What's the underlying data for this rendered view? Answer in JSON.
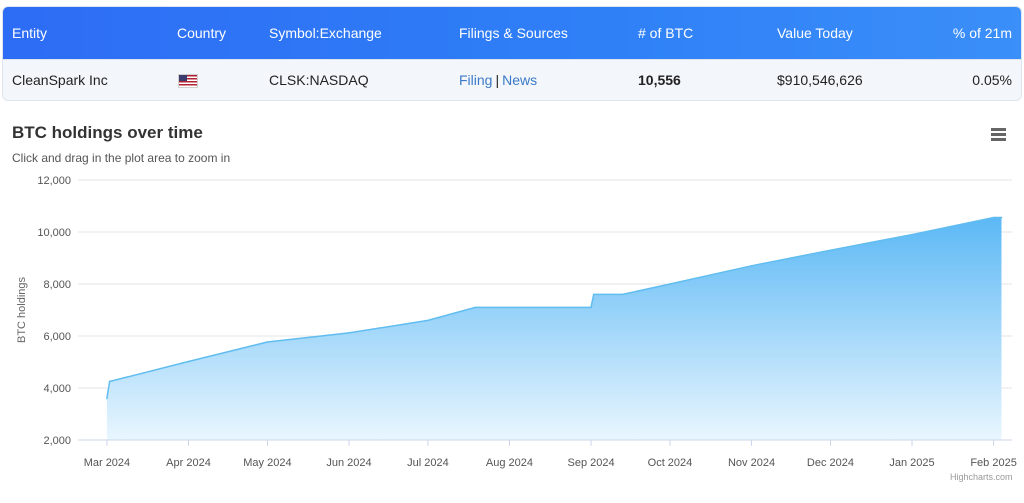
{
  "table": {
    "headers": [
      "Entity",
      "Country",
      "Symbol:Exchange",
      "Filings & Sources",
      "# of BTC",
      "Value Today",
      "% of 21m"
    ],
    "row": {
      "entity": "CleanSpark Inc",
      "country_flag": "us-flag-icon",
      "symbol": "CLSK:NASDAQ",
      "filing_label": "Filing",
      "separator": "|",
      "news_label": "News",
      "btc": "10,556",
      "value_today": "$910,546,626",
      "percent": "0.05%"
    }
  },
  "chart": {
    "title": "BTC holdings over time",
    "subtitle": "Click and drag in the plot area to zoom in",
    "menu_icon": "hamburger-menu-icon",
    "credit": "Highcharts.com"
  },
  "colors": {
    "header_blue": "#2f7cf6",
    "area_top": "#5bb8f5",
    "area_bottom": "#e9f6fe",
    "line": "#61bdf0"
  },
  "chart_data": {
    "type": "area",
    "ylabel": "BTC holdings",
    "ylim": [
      2000,
      12000
    ],
    "y_ticks": [
      2000,
      4000,
      6000,
      8000,
      10000,
      12000
    ],
    "y_tick_labels": [
      "2,000",
      "4,000",
      "6,000",
      "8,000",
      "10,000",
      "12,000"
    ],
    "x_tick_labels": [
      "Mar 2024",
      "Apr 2024",
      "May 2024",
      "Jun 2024",
      "Jul 2024",
      "Aug 2024",
      "Sep 2024",
      "Oct 2024",
      "Nov 2024",
      "Dec 2024",
      "Jan 2025",
      "Feb 2025"
    ],
    "grid": true,
    "legend": "none",
    "series": [
      {
        "points": [
          {
            "x": "2024-03-01",
            "y": 3600
          },
          {
            "x": "2024-03-02",
            "y": 4250
          },
          {
            "x": "2024-04-01",
            "y": 5020
          },
          {
            "x": "2024-05-01",
            "y": 5770
          },
          {
            "x": "2024-06-01",
            "y": 6120
          },
          {
            "x": "2024-07-01",
            "y": 6600
          },
          {
            "x": "2024-07-19",
            "y": 7100
          },
          {
            "x": "2024-09-01",
            "y": 7100
          },
          {
            "x": "2024-09-02",
            "y": 7600
          },
          {
            "x": "2024-09-13",
            "y": 7600
          },
          {
            "x": "2024-10-01",
            "y": 8000
          },
          {
            "x": "2024-11-01",
            "y": 8700
          },
          {
            "x": "2024-12-01",
            "y": 9300
          },
          {
            "x": "2025-01-01",
            "y": 9900
          },
          {
            "x": "2025-02-01",
            "y": 10556
          },
          {
            "x": "2025-02-04",
            "y": 10556
          }
        ]
      }
    ]
  }
}
